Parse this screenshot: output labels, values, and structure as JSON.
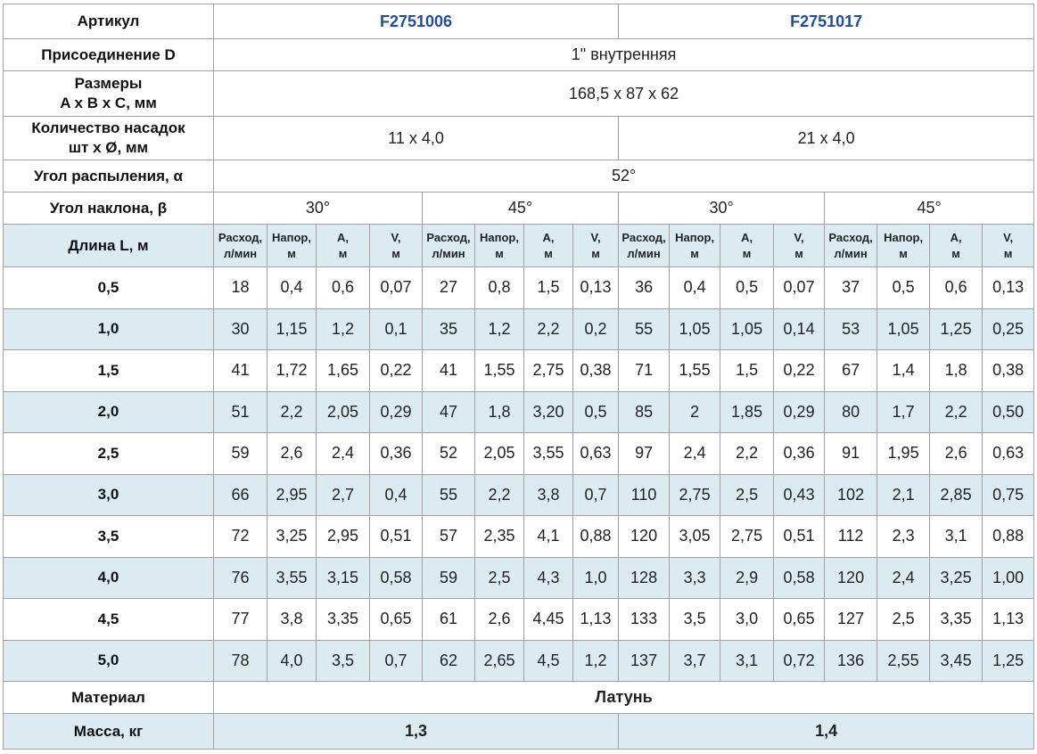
{
  "table": {
    "article": {
      "label": "Артикул",
      "values": [
        "F2751006",
        "F2751017"
      ]
    },
    "connection": {
      "label": "Присоединение D",
      "value": "1\" внутренняя"
    },
    "dimensions": {
      "label": [
        "Размеры",
        "A x B x C, мм"
      ],
      "value": "168,5 x 87 x 62"
    },
    "nozzles": {
      "label": [
        "Количество насадок",
        "шт x Ø, мм"
      ],
      "values": [
        "11 x 4,0",
        "21 x 4,0"
      ]
    },
    "spray_angle": {
      "label": "Угол распыления, α",
      "value": "52°"
    },
    "tilt_angle": {
      "label": "Угол наклона, β",
      "values": [
        "30°",
        "45°",
        "30°",
        "45°"
      ]
    },
    "columns": {
      "label": "Длина L, м",
      "headers": [
        [
          "Расход,",
          "л/мин"
        ],
        [
          "Напор,",
          "м"
        ],
        [
          "A,",
          "м"
        ],
        [
          "V,",
          "м"
        ],
        [
          "Расход,",
          "л/мин"
        ],
        [
          "Напор,",
          "м"
        ],
        [
          "A,",
          "м"
        ],
        [
          "V,",
          "м"
        ],
        [
          "Расход,",
          "л/мин"
        ],
        [
          "Напор,",
          "м"
        ],
        [
          "A,",
          "м"
        ],
        [
          "V,",
          "м"
        ],
        [
          "Расход,",
          "л/мин"
        ],
        [
          "Напор,",
          "м"
        ],
        [
          "A,",
          "м"
        ],
        [
          "V,",
          "м"
        ]
      ]
    },
    "rows": [
      {
        "length": "0,5",
        "values": [
          "18",
          "0,4",
          "0,6",
          "0,07",
          "27",
          "0,8",
          "1,5",
          "0,13",
          "36",
          "0,4",
          "0,5",
          "0,07",
          "37",
          "0,5",
          "0,6",
          "0,13"
        ]
      },
      {
        "length": "1,0",
        "values": [
          "30",
          "1,15",
          "1,2",
          "0,1",
          "35",
          "1,2",
          "2,2",
          "0,2",
          "55",
          "1,05",
          "1,05",
          "0,14",
          "53",
          "1,05",
          "1,25",
          "0,25"
        ]
      },
      {
        "length": "1,5",
        "values": [
          "41",
          "1,72",
          "1,65",
          "0,22",
          "41",
          "1,55",
          "2,75",
          "0,38",
          "71",
          "1,55",
          "1,5",
          "0,22",
          "67",
          "1,4",
          "1,8",
          "0,38"
        ]
      },
      {
        "length": "2,0",
        "values": [
          "51",
          "2,2",
          "2,05",
          "0,29",
          "47",
          "1,8",
          "3,20",
          "0,5",
          "85",
          "2",
          "1,85",
          "0,29",
          "80",
          "1,7",
          "2,2",
          "0,50"
        ]
      },
      {
        "length": "2,5",
        "values": [
          "59",
          "2,6",
          "2,4",
          "0,36",
          "52",
          "2,05",
          "3,55",
          "0,63",
          "97",
          "2,4",
          "2,2",
          "0,36",
          "91",
          "1,95",
          "2,6",
          "0,63"
        ]
      },
      {
        "length": "3,0",
        "values": [
          "66",
          "2,95",
          "2,7",
          "0,4",
          "55",
          "2,2",
          "3,8",
          "0,7",
          "110",
          "2,75",
          "2,5",
          "0,43",
          "102",
          "2,1",
          "2,85",
          "0,75"
        ]
      },
      {
        "length": "3,5",
        "values": [
          "72",
          "3,25",
          "2,95",
          "0,51",
          "57",
          "2,35",
          "4,1",
          "0,88",
          "120",
          "3,05",
          "2,75",
          "0,51",
          "112",
          "2,3",
          "3,1",
          "0,88"
        ]
      },
      {
        "length": "4,0",
        "values": [
          "76",
          "3,55",
          "3,15",
          "0,58",
          "59",
          "2,5",
          "4,3",
          "1,0",
          "128",
          "3,3",
          "2,9",
          "0,58",
          "120",
          "2,4",
          "3,25",
          "1,00"
        ]
      },
      {
        "length": "4,5",
        "values": [
          "77",
          "3,8",
          "3,35",
          "0,65",
          "61",
          "2,6",
          "4,45",
          "1,13",
          "133",
          "3,5",
          "3,0",
          "0,65",
          "127",
          "2,5",
          "3,35",
          "1,13"
        ]
      },
      {
        "length": "5,0",
        "values": [
          "78",
          "4,0",
          "3,5",
          "0,7",
          "62",
          "2,65",
          "4,5",
          "1,2",
          "137",
          "3,7",
          "3,1",
          "0,72",
          "136",
          "2,55",
          "3,45",
          "1,25"
        ]
      }
    ],
    "material": {
      "label": "Материал",
      "value": "Латунь"
    },
    "mass": {
      "label": "Масса, кг",
      "values": [
        "1,3",
        "1,4"
      ]
    }
  }
}
